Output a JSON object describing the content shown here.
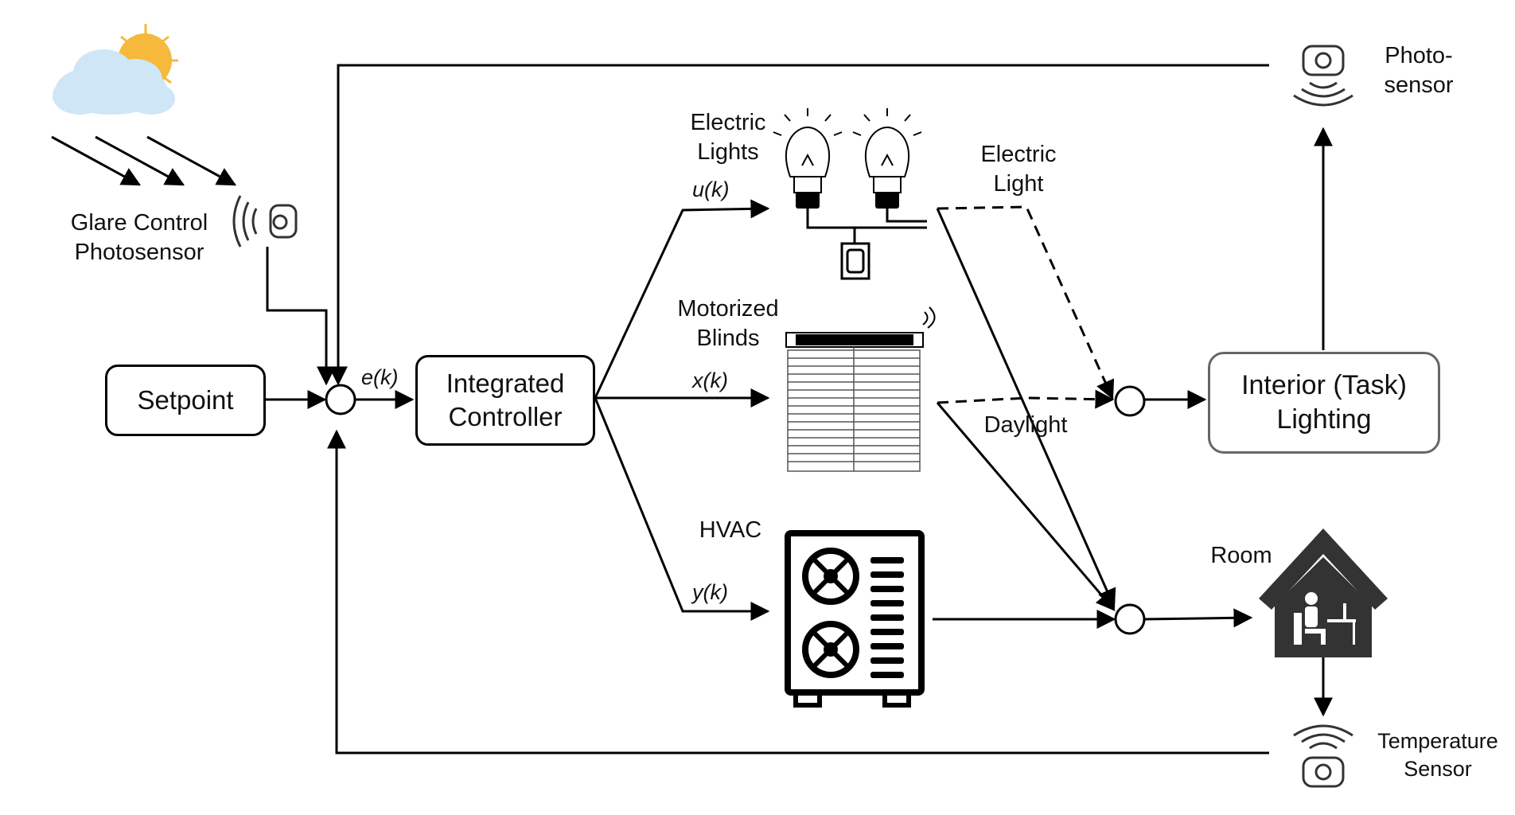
{
  "blocks": {
    "setpoint": "Setpoint",
    "controller": [
      "Integrated",
      "Controller"
    ],
    "interior_lighting": [
      "Interior (Task)",
      "Lighting"
    ]
  },
  "labels": {
    "glare_control_photosensor": [
      "Glare Control",
      "Photosensor"
    ],
    "electric_lights": [
      "Electric",
      "Lights"
    ],
    "motorized_blinds": [
      "Motorized",
      "Blinds"
    ],
    "hvac": "HVAC",
    "electric_light_path": [
      "Electric",
      "Light"
    ],
    "daylight_path": "Daylight",
    "photo_sensor": [
      "Photo-",
      "sensor"
    ],
    "room": "Room",
    "temperature_sensor": [
      "Temperature",
      "Sensor"
    ]
  },
  "signals": {
    "error": "e(k)",
    "lights": "u(k)",
    "blinds": "x(k)",
    "hvac": "y(k)"
  },
  "colors": {
    "line": "#000000",
    "sun": "#f6b93b",
    "cloud": "#cfe6f7",
    "sensor_icon": "#333333",
    "house": "#333333",
    "lighting_box_border": "#666666"
  }
}
